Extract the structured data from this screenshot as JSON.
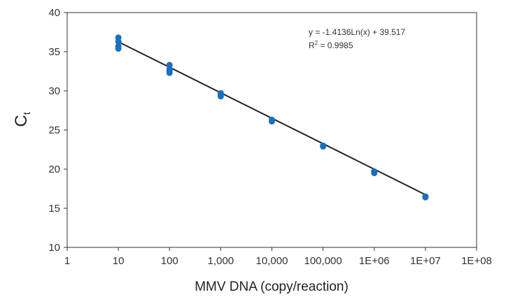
{
  "chart_data": {
    "type": "scatter",
    "x_scale": "log10",
    "xlim": [
      1,
      100000000
    ],
    "ylim": [
      10,
      40
    ],
    "x_ticks": [
      1,
      10,
      100,
      1000,
      10000,
      100000,
      1000000,
      10000000,
      100000000
    ],
    "x_tick_labels": [
      "1",
      "10",
      "100",
      "1,000",
      "10,000",
      "100,000",
      "1E+06",
      "1E+07",
      "1E+08"
    ],
    "y_ticks": [
      10,
      15,
      20,
      25,
      30,
      35,
      40
    ],
    "y_tick_labels": [
      "10",
      "15",
      "20",
      "25",
      "30",
      "35",
      "40"
    ],
    "xlabel": "MMV DNA (copy/reaction)",
    "ylabel": "C",
    "ylabel_subscript": "t",
    "grid": false,
    "point_color": "#1a6fbf",
    "line_color": "#222222",
    "points": [
      {
        "x": 10,
        "y": 36.8
      },
      {
        "x": 10,
        "y": 36.3
      },
      {
        "x": 10,
        "y": 35.7
      },
      {
        "x": 10,
        "y": 35.4
      },
      {
        "x": 100,
        "y": 33.3
      },
      {
        "x": 100,
        "y": 32.8
      },
      {
        "x": 100,
        "y": 32.6
      },
      {
        "x": 100,
        "y": 32.3
      },
      {
        "x": 1000,
        "y": 29.7
      },
      {
        "x": 1000,
        "y": 29.5
      },
      {
        "x": 1000,
        "y": 29.3
      },
      {
        "x": 10000,
        "y": 26.3
      },
      {
        "x": 10000,
        "y": 26.1
      },
      {
        "x": 100000,
        "y": 23.0
      },
      {
        "x": 100000,
        "y": 22.9
      },
      {
        "x": 1000000,
        "y": 19.7
      },
      {
        "x": 1000000,
        "y": 19.5
      },
      {
        "x": 10000000,
        "y": 16.5
      },
      {
        "x": 10000000,
        "y": 16.4
      }
    ],
    "trendline": {
      "slope_ln": -1.4136,
      "intercept": 39.517,
      "x_range": [
        10,
        10000000
      ]
    },
    "annotations": {
      "equation": "y = -1.4136Ln(x) + 39.517",
      "r_squared_prefix": "R",
      "r_squared_superscript": "2",
      "r_squared_value": " = 0.9985"
    }
  }
}
